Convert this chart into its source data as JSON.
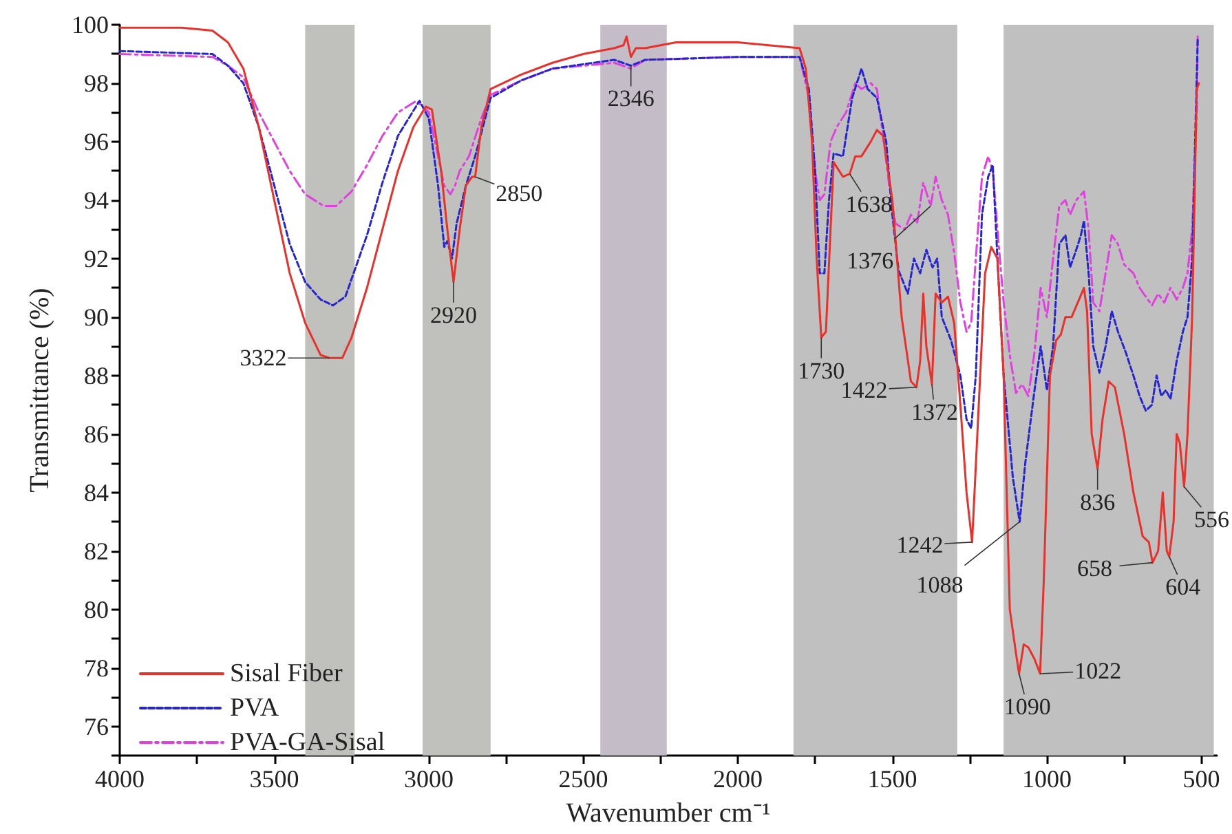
{
  "chart_data": {
    "type": "line",
    "xlabel": "Wavenumber cm⁻¹",
    "ylabel": "Transmittance (%)",
    "xlim": [
      4000,
      450
    ],
    "ylim": [
      75,
      100
    ],
    "xticks": [
      4000,
      {
        "value": 3750,
        "label": null
      },
      3500,
      {
        "value": 3250,
        "label": null
      },
      3000,
      {
        "value": 2750,
        "label": null
      },
      2500,
      {
        "value": 2250,
        "label": null
      },
      2000,
      {
        "value": 1750,
        "label": null
      },
      1500,
      {
        "value": 1250,
        "label": null
      },
      1000,
      {
        "value": 750,
        "label": null
      },
      500
    ],
    "yticks": [
      {
        "value": 75,
        "label": null
      },
      76,
      {
        "value": 77,
        "label": null
      },
      78,
      {
        "value": 79,
        "label": null
      },
      80,
      {
        "value": 81,
        "label": null
      },
      82,
      {
        "value": 83,
        "label": null
      },
      84,
      {
        "value": 85,
        "label": null
      },
      86,
      {
        "value": 87,
        "label": null
      },
      88,
      {
        "value": 89,
        "label": null
      },
      90,
      {
        "value": 91,
        "label": null
      },
      92,
      {
        "value": 93,
        "label": null
      },
      94,
      {
        "value": 95,
        "label": null
      },
      96,
      {
        "value": 97,
        "label": null
      },
      98,
      {
        "value": 99,
        "label": null
      },
      100
    ],
    "grid": false,
    "legend": "bottom left",
    "marker": "none",
    "series": [
      {
        "name": "Sisal Fiber",
        "color": "#e8312a",
        "line_style": "solid",
        "x": [
          4000,
          3800,
          3700,
          3650,
          3600,
          3550,
          3500,
          3450,
          3400,
          3350,
          3322,
          3280,
          3250,
          3200,
          3150,
          3100,
          3050,
          3010,
          2990,
          2960,
          2940,
          2920,
          2900,
          2880,
          2860,
          2850,
          2830,
          2800,
          2700,
          2600,
          2500,
          2400,
          2370,
          2360,
          2346,
          2330,
          2300,
          2200,
          2000,
          1900,
          1800,
          1780,
          1760,
          1745,
          1730,
          1715,
          1700,
          1690,
          1660,
          1638,
          1620,
          1600,
          1570,
          1550,
          1530,
          1500,
          1470,
          1440,
          1422,
          1410,
          1400,
          1390,
          1372,
          1360,
          1340,
          1320,
          1300,
          1280,
          1260,
          1242,
          1225,
          1200,
          1180,
          1160,
          1140,
          1120,
          1100,
          1090,
          1075,
          1060,
          1040,
          1022,
          1010,
          990,
          970,
          955,
          940,
          920,
          900,
          880,
          870,
          855,
          836,
          820,
          800,
          780,
          750,
          720,
          690,
          670,
          658,
          640,
          625,
          612,
          604,
          590,
          580,
          570,
          556,
          545,
          530,
          515,
          508
        ],
        "values": [
          99.9,
          99.9,
          99.8,
          99.4,
          98.5,
          96.5,
          94,
          91.5,
          89.8,
          88.7,
          88.6,
          88.6,
          89.3,
          91,
          93,
          95,
          96.5,
          97.2,
          97.1,
          95,
          93,
          91.2,
          93,
          94.5,
          94.8,
          94.8,
          96.5,
          97.8,
          98.3,
          98.7,
          99,
          99.2,
          99.3,
          99.6,
          98.9,
          99.2,
          99.2,
          99.4,
          99.4,
          99.3,
          99.2,
          98.5,
          96,
          92,
          89.3,
          89.5,
          93,
          95.3,
          94.8,
          94.9,
          95.5,
          95.5,
          96,
          96.4,
          96.2,
          94,
          90,
          87.8,
          87.6,
          88.5,
          90.8,
          89,
          87.7,
          90.8,
          90.5,
          90.7,
          89.8,
          87,
          84,
          82.3,
          86,
          91.5,
          92.4,
          92,
          88,
          80,
          78.5,
          77.8,
          78.8,
          78.7,
          78.3,
          77.8,
          81,
          88,
          89.2,
          89.4,
          90,
          90,
          90.5,
          91,
          90.2,
          86,
          84.8,
          86.5,
          87.8,
          87.6,
          86,
          84,
          82.5,
          82.3,
          81.6,
          82,
          84,
          82,
          81.8,
          83,
          86,
          85.7,
          84.2,
          86,
          90,
          97.8,
          98
        ]
      },
      {
        "name": "PVA",
        "color": "#2626d0",
        "line_style": "dashed",
        "x": [
          4000,
          3700,
          3650,
          3600,
          3550,
          3500,
          3450,
          3400,
          3350,
          3310,
          3270,
          3200,
          3150,
          3100,
          3030,
          3000,
          2970,
          2950,
          2940,
          2925,
          2910,
          2880,
          2850,
          2800,
          2700,
          2600,
          2400,
          2346,
          2300,
          2000,
          1800,
          1770,
          1750,
          1735,
          1720,
          1705,
          1690,
          1660,
          1630,
          1600,
          1580,
          1550,
          1520,
          1500,
          1480,
          1450,
          1430,
          1410,
          1390,
          1370,
          1355,
          1340,
          1310,
          1280,
          1260,
          1245,
          1230,
          1210,
          1190,
          1175,
          1160,
          1140,
          1110,
          1088,
          1070,
          1040,
          1020,
          1000,
          980,
          960,
          940,
          925,
          905,
          890,
          880,
          865,
          850,
          830,
          810,
          790,
          770,
          745,
          720,
          700,
          680,
          660,
          645,
          630,
          615,
          600,
          580,
          560,
          545,
          530,
          512
        ],
        "values": [
          99.1,
          99,
          98.6,
          98,
          96.5,
          94.5,
          92.5,
          91.2,
          90.6,
          90.4,
          90.7,
          92.8,
          94.6,
          96.2,
          97.4,
          96.8,
          94.5,
          92.4,
          92.6,
          92,
          93.2,
          94.5,
          95.5,
          97.5,
          98.1,
          98.5,
          98.8,
          98.6,
          98.8,
          98.9,
          98.9,
          97.8,
          95,
          91.5,
          91.5,
          94,
          95.6,
          95.5,
          97.5,
          98.5,
          97.8,
          97.5,
          96,
          93.5,
          91.6,
          90.8,
          92,
          91.5,
          92.3,
          91.7,
          92,
          90,
          89.2,
          88,
          86.5,
          86.2,
          88,
          93.5,
          94.8,
          95.2,
          92,
          88,
          84.5,
          83,
          85,
          87.5,
          89,
          87.5,
          89,
          92.5,
          92.8,
          91.7,
          92.3,
          92.8,
          93.3,
          91.5,
          89,
          88.1,
          89,
          90.2,
          89.5,
          88.8,
          88,
          87.3,
          86.8,
          87,
          88,
          87.3,
          87.5,
          87.2,
          88.5,
          89.5,
          90,
          92,
          99.5
        ]
      },
      {
        "name": "PVA-GA-Sisal",
        "color": "#e040e0",
        "line_style": "dashdot",
        "x": [
          4000,
          3700,
          3650,
          3600,
          3550,
          3500,
          3450,
          3400,
          3340,
          3300,
          3250,
          3200,
          3150,
          3100,
          3040,
          3000,
          2970,
          2950,
          2930,
          2915,
          2900,
          2870,
          2830,
          2800,
          2700,
          2600,
          2400,
          2346,
          2300,
          2000,
          1800,
          1770,
          1750,
          1735,
          1720,
          1700,
          1680,
          1650,
          1620,
          1600,
          1570,
          1550,
          1530,
          1510,
          1490,
          1460,
          1440,
          1420,
          1400,
          1376,
          1360,
          1340,
          1320,
          1300,
          1280,
          1260,
          1245,
          1230,
          1210,
          1190,
          1175,
          1160,
          1140,
          1120,
          1100,
          1080,
          1060,
          1040,
          1020,
          1000,
          980,
          960,
          940,
          925,
          905,
          880,
          865,
          850,
          830,
          810,
          790,
          770,
          750,
          720,
          700,
          680,
          660,
          640,
          620,
          600,
          580,
          560,
          545,
          530,
          515,
          512
        ],
        "values": [
          99,
          98.9,
          98.6,
          98.2,
          97,
          96,
          95,
          94.2,
          93.8,
          93.8,
          94.3,
          95.2,
          96.2,
          97,
          97.4,
          97,
          95.5,
          94.5,
          94.2,
          94.5,
          95,
          95.5,
          96.8,
          97.6,
          98.1,
          98.5,
          98.7,
          98.5,
          98.8,
          98.9,
          98.9,
          97.5,
          95,
          94,
          94.2,
          96,
          96.5,
          97,
          98,
          97.8,
          98,
          97.8,
          96.2,
          94.5,
          93.2,
          93,
          93.5,
          93.2,
          94.6,
          93.8,
          94.8,
          94,
          93.5,
          92.2,
          90.5,
          89.5,
          89.8,
          92,
          94.8,
          95.5,
          95,
          93,
          90.5,
          88.7,
          87.4,
          87.7,
          87.3,
          88.8,
          91,
          90,
          92,
          93.8,
          94,
          93.5,
          94,
          94.3,
          93,
          90.5,
          90.2,
          91.5,
          92.8,
          92.5,
          91.8,
          91.5,
          91,
          90.7,
          90.4,
          90.8,
          90.5,
          91,
          90.6,
          91,
          91.5,
          93,
          97,
          99.6
        ]
      }
    ],
    "bands": [
      {
        "axis": "x",
        "from": 3400,
        "to": 3240,
        "color": "#c0c0bc"
      },
      {
        "axis": "x",
        "from": 3020,
        "to": 2800,
        "color": "#c0c0bc"
      },
      {
        "axis": "x",
        "from": 2445,
        "to": 2230,
        "color": "#c4bcc6"
      },
      {
        "axis": "x",
        "from": 1820,
        "to": 1290,
        "color": "#c0c0c0"
      },
      {
        "axis": "x",
        "from": 1140,
        "to": 460,
        "color": "#c0c0c0"
      }
    ],
    "annotations": [
      {
        "text": "3322",
        "x": 3322,
        "y": 88.6
      },
      {
        "text": "2920",
        "x": 2920,
        "y": 91.2
      },
      {
        "text": "2850",
        "x": 2850,
        "y": 94.8
      },
      {
        "text": "2346",
        "x": 2346,
        "y": 98.6
      },
      {
        "text": "1730",
        "x": 1730,
        "y": 89.3
      },
      {
        "text": "1638",
        "x": 1638,
        "y": 94.9
      },
      {
        "text": "1376",
        "x": 1376,
        "y": 93.8
      },
      {
        "text": "1422",
        "x": 1422,
        "y": 87.6
      },
      {
        "text": "1372",
        "x": 1372,
        "y": 87.7
      },
      {
        "text": "1242",
        "x": 1242,
        "y": 82.3
      },
      {
        "text": "1088",
        "x": 1088,
        "y": 83
      },
      {
        "text": "836",
        "x": 836,
        "y": 84.8
      },
      {
        "text": "556",
        "x": 556,
        "y": 84.2
      },
      {
        "text": "658",
        "x": 658,
        "y": 81.6
      },
      {
        "text": "604",
        "x": 604,
        "y": 81.8
      },
      {
        "text": "1090",
        "x": 1090,
        "y": 77.8
      },
      {
        "text": "1022",
        "x": 1022,
        "y": 77.8
      }
    ]
  }
}
